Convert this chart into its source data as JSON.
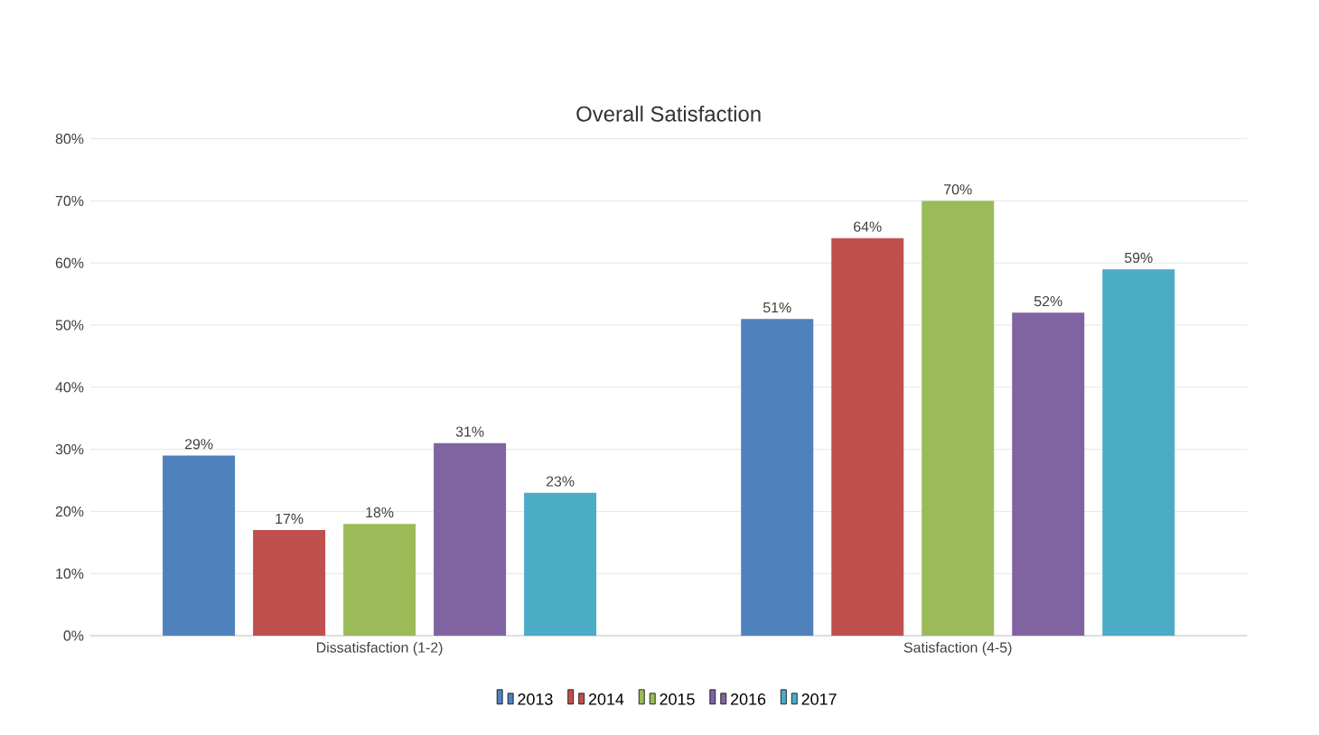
{
  "chart_data": {
    "type": "bar",
    "title": "Overall Satisfaction",
    "categories": [
      "Dissatisfaction (1-2)",
      "Satisfaction (4-5)"
    ],
    "series": [
      {
        "name": "2013",
        "color": "#4f81bd",
        "values": [
          29,
          51
        ],
        "value_labels": [
          "29%",
          "51%"
        ]
      },
      {
        "name": "2014",
        "color": "#c0504d",
        "values": [
          17,
          64
        ],
        "value_labels": [
          "17%",
          "64%"
        ]
      },
      {
        "name": "2015",
        "color": "#9bbb59",
        "values": [
          18,
          70
        ],
        "value_labels": [
          "18%",
          "70%"
        ]
      },
      {
        "name": "2016",
        "color": "#8064a2",
        "values": [
          31,
          52
        ],
        "value_labels": [
          "31%",
          "52%"
        ]
      },
      {
        "name": "2017",
        "color": "#4bacc6",
        "values": [
          23,
          59
        ],
        "value_labels": [
          "23%",
          "59%"
        ]
      }
    ],
    "ylim": [
      0,
      80
    ],
    "yticks": [
      {
        "value": 0,
        "label": "0%"
      },
      {
        "value": 10,
        "label": "10%"
      },
      {
        "value": 20,
        "label": "20%"
      },
      {
        "value": 30,
        "label": "30%"
      },
      {
        "value": 40,
        "label": "40%"
      },
      {
        "value": 50,
        "label": "50%"
      },
      {
        "value": 60,
        "label": "60%"
      },
      {
        "value": 70,
        "label": "70%"
      },
      {
        "value": 80,
        "label": "80%"
      }
    ],
    "grid": "y",
    "legend": "bottom"
  }
}
